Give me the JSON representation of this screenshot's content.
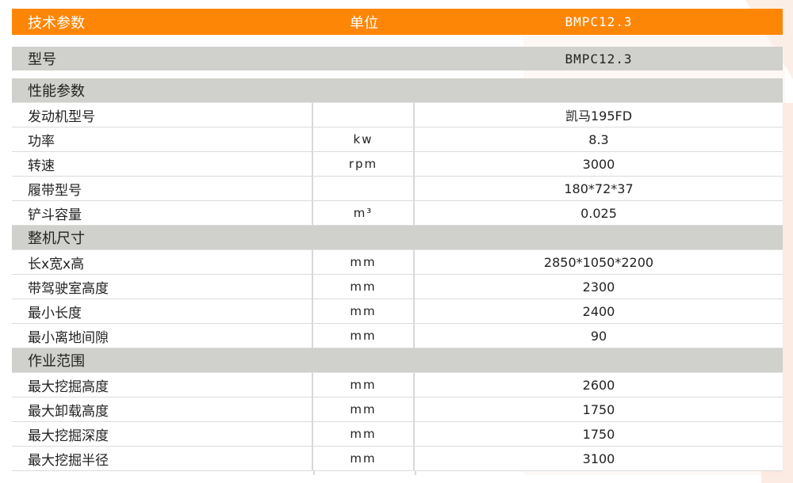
{
  "colors": {
    "header": "#fe8607",
    "section": "#d0d0cc"
  },
  "header": {
    "param": "技术参数",
    "unit": "单位",
    "model": "BMPC12.3"
  },
  "model_row": {
    "label": "型号",
    "value": "BMPC12.3"
  },
  "sections": [
    {
      "title": "性能参数",
      "rows": [
        {
          "label": "发动机型号",
          "unit": "",
          "value": "凯马195FD"
        },
        {
          "label": "功率",
          "unit": "kw",
          "value": "8.3"
        },
        {
          "label": "转速",
          "unit": "rpm",
          "value": "3000"
        },
        {
          "label": "履带型号",
          "unit": "",
          "value": "180*72*37"
        },
        {
          "label": "铲斗容量",
          "unit": "m³",
          "value": "0.025"
        }
      ]
    },
    {
      "title": "整机尺寸",
      "rows": [
        {
          "label": "长x宽x高",
          "unit": "mm",
          "value": "2850*1050*2200"
        },
        {
          "label": "带驾驶室高度",
          "unit": "mm",
          "value": "2300"
        },
        {
          "label": "最小长度",
          "unit": "mm",
          "value": "2400"
        },
        {
          "label": "最小离地间隙",
          "unit": "mm",
          "value": "90"
        }
      ]
    },
    {
      "title": "作业范围",
      "rows": [
        {
          "label": "最大挖掘高度",
          "unit": "mm",
          "value": "2600"
        },
        {
          "label": "最大卸载高度",
          "unit": "mm",
          "value": "1750"
        },
        {
          "label": "最大挖掘深度",
          "unit": "mm",
          "value": "1750"
        },
        {
          "label": "最大挖掘半径",
          "unit": "mm",
          "value": "3100"
        }
      ]
    }
  ]
}
